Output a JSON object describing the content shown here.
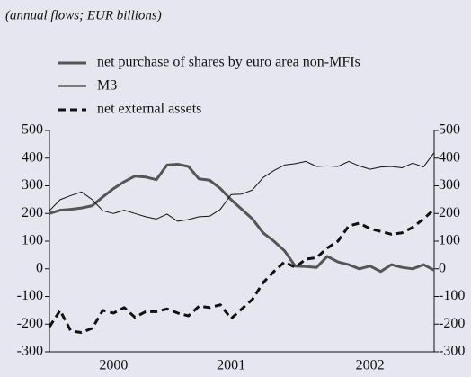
{
  "chart_data": {
    "type": "line",
    "subtitle": "(annual flows; EUR billions)",
    "categories": [
      null,
      null,
      null,
      null,
      null,
      null,
      "2000",
      null,
      null,
      null,
      null,
      null,
      null,
      null,
      null,
      null,
      null,
      "2001",
      null,
      null,
      null,
      null,
      null,
      null,
      null,
      null,
      null,
      null,
      null,
      null,
      "2002",
      null,
      null,
      null,
      null,
      null,
      null
    ],
    "series": [
      {
        "name": "net purchase of shares by euro area non-MFIs",
        "color": "#555555",
        "width": 3,
        "dash": "solid",
        "values": [
          200,
          212,
          215,
          220,
          228,
          260,
          290,
          315,
          335,
          332,
          322,
          375,
          378,
          370,
          325,
          320,
          290,
          250,
          215,
          180,
          130,
          100,
          65,
          10,
          8,
          5,
          45,
          25,
          15,
          0,
          10,
          -10,
          15,
          5,
          0,
          15,
          -5
        ]
      },
      {
        "name": "M3",
        "color": "#111111",
        "width": 1,
        "dash": "solid",
        "values": [
          210,
          250,
          265,
          278,
          250,
          210,
          200,
          212,
          200,
          188,
          180,
          198,
          172,
          178,
          188,
          190,
          215,
          268,
          270,
          285,
          330,
          355,
          375,
          380,
          388,
          370,
          372,
          370,
          388,
          372,
          360,
          368,
          370,
          365,
          382,
          368,
          420
        ]
      },
      {
        "name": "net external assets",
        "color": "#111111",
        "width": 3,
        "dash": "dashed",
        "values": [
          -210,
          -150,
          -225,
          -230,
          -215,
          -150,
          -160,
          -140,
          -175,
          -155,
          -155,
          -145,
          -160,
          -170,
          -135,
          -140,
          -130,
          -180,
          -145,
          -110,
          -50,
          -10,
          25,
          5,
          35,
          40,
          75,
          100,
          155,
          165,
          145,
          135,
          125,
          130,
          150,
          180,
          215
        ]
      }
    ],
    "ylim": [
      -300,
      500
    ],
    "yticks": [
      -300,
      -200,
      -100,
      0,
      100,
      200,
      300,
      400,
      500
    ],
    "y2lim": [
      -300,
      500
    ],
    "y2ticks": [
      -300,
      -200,
      -100,
      0,
      100,
      200,
      300,
      400,
      500
    ],
    "background": "#e6e6f0"
  }
}
